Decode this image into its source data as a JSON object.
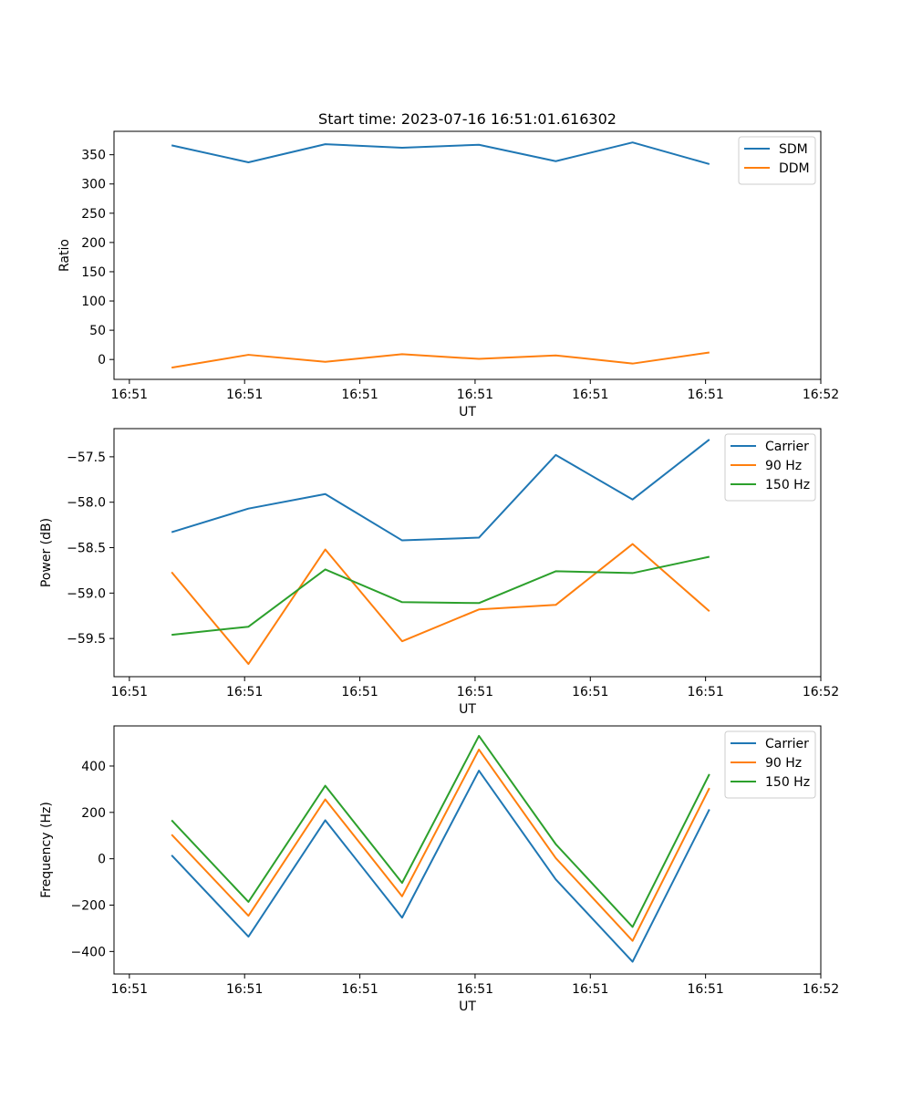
{
  "chart_data": [
    {
      "type": "line",
      "title": "Start time: 2023-07-16 16:51:01.616302",
      "xlabel": "UT",
      "ylabel": "Ratio",
      "x": [
        0,
        1,
        2,
        3,
        4,
        5,
        6,
        7
      ],
      "xlim": [
        -0.75,
        8.45
      ],
      "ylim": [
        -34,
        390
      ],
      "x_ticks": [
        -0.55,
        0.95,
        2.45,
        3.95,
        5.45,
        6.95,
        8.45
      ],
      "x_tick_labels": [
        "16:51",
        "16:51",
        "16:51",
        "16:51",
        "16:51",
        "16:51",
        "16:52"
      ],
      "y_ticks": [
        0,
        50,
        100,
        150,
        200,
        250,
        300,
        350
      ],
      "y_tick_labels": [
        "0",
        "50",
        "100",
        "150",
        "200",
        "250",
        "300",
        "350"
      ],
      "legend_loc": "upper-right",
      "series": [
        {
          "name": "SDM",
          "color": "#1f77b4",
          "values": [
            366,
            337,
            368,
            362,
            367,
            339,
            371,
            334
          ]
        },
        {
          "name": "DDM",
          "color": "#ff7f0e",
          "values": [
            -14,
            8,
            -4,
            9,
            1,
            7,
            -7,
            12
          ]
        }
      ]
    },
    {
      "type": "line",
      "title": "",
      "xlabel": "UT",
      "ylabel": "Power (dB)",
      "x": [
        0,
        1,
        2,
        3,
        4,
        5,
        6,
        7
      ],
      "xlim": [
        -0.75,
        8.45
      ],
      "ylim": [
        -59.92,
        -57.19
      ],
      "x_ticks": [
        -0.55,
        0.95,
        2.45,
        3.95,
        5.45,
        6.95,
        8.45
      ],
      "x_tick_labels": [
        "16:51",
        "16:51",
        "16:51",
        "16:51",
        "16:51",
        "16:51",
        "16:52"
      ],
      "y_ticks": [
        -59.5,
        -59.0,
        -58.5,
        -58.0,
        -57.5
      ],
      "y_tick_labels": [
        "−59.5",
        "−59.0",
        "−58.5",
        "−58.0",
        "−57.5"
      ],
      "legend_loc": "upper-right",
      "series": [
        {
          "name": "Carrier",
          "color": "#1f77b4",
          "values": [
            -58.33,
            -58.07,
            -57.91,
            -58.42,
            -58.39,
            -57.48,
            -57.97,
            -57.31
          ]
        },
        {
          "name": "90 Hz",
          "color": "#ff7f0e",
          "values": [
            -58.77,
            -59.78,
            -58.52,
            -59.53,
            -59.18,
            -59.13,
            -58.46,
            -59.2
          ]
        },
        {
          "name": "150 Hz",
          "color": "#2ca02c",
          "values": [
            -59.46,
            -59.37,
            -58.74,
            -59.1,
            -59.11,
            -58.76,
            -58.78,
            -58.6
          ]
        }
      ]
    },
    {
      "type": "line",
      "title": "",
      "xlabel": "UT",
      "ylabel": "Frequency (Hz)",
      "x": [
        0,
        1,
        2,
        3,
        4,
        5,
        6,
        7
      ],
      "xlim": [
        -0.75,
        8.45
      ],
      "ylim": [
        -497,
        573
      ],
      "x_ticks": [
        -0.55,
        0.95,
        2.45,
        3.95,
        5.45,
        6.95,
        8.45
      ],
      "x_tick_labels": [
        "16:51",
        "16:51",
        "16:51",
        "16:51",
        "16:51",
        "16:51",
        "16:52"
      ],
      "y_ticks": [
        -400,
        -200,
        0,
        200,
        400
      ],
      "y_tick_labels": [
        "−400",
        "−200",
        "0",
        "200",
        "400"
      ],
      "legend_loc": "upper-right",
      "series": [
        {
          "name": "Carrier",
          "color": "#1f77b4",
          "values": [
            15,
            -336,
            166,
            -254,
            380,
            -89,
            -444,
            213
          ]
        },
        {
          "name": "90 Hz",
          "color": "#ff7f0e",
          "values": [
            104,
            -246,
            256,
            -162,
            471,
            3,
            -354,
            305
          ]
        },
        {
          "name": "150 Hz",
          "color": "#2ca02c",
          "values": [
            166,
            -186,
            315,
            -104,
            530,
            63,
            -294,
            365
          ]
        }
      ]
    }
  ]
}
